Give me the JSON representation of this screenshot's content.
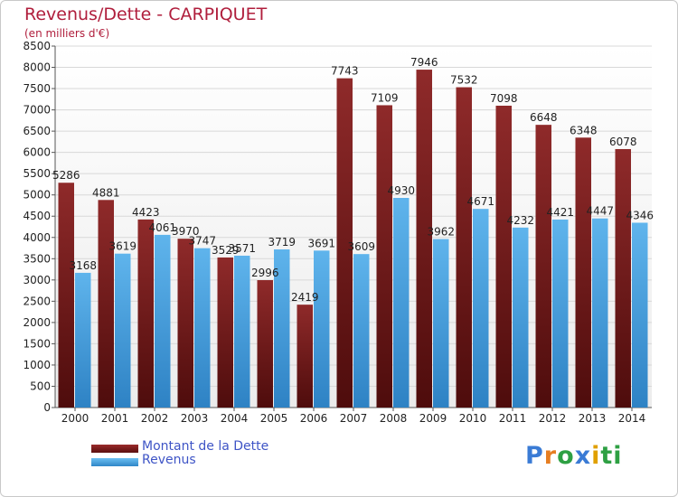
{
  "chart_data": {
    "type": "bar",
    "title": "Revenus/Dette - CARPIQUET",
    "subtitle": "(en milliers d'€)",
    "categories": [
      "2000",
      "2001",
      "2002",
      "2003",
      "2004",
      "2005",
      "2006",
      "2007",
      "2008",
      "2009",
      "2010",
      "2011",
      "2012",
      "2013",
      "2014"
    ],
    "series": [
      {
        "name": "Montant de la Dette",
        "color": "#7f1c1c",
        "values": [
          5286,
          4881,
          4423,
          3970,
          3529,
          2996,
          2419,
          7743,
          7109,
          7946,
          7532,
          7098,
          6648,
          6348,
          6078
        ]
      },
      {
        "name": "Revenus",
        "color": "#4aa3e0",
        "values": [
          3168,
          3619,
          4061,
          3747,
          3571,
          3719,
          3691,
          3609,
          4930,
          3962,
          4671,
          4232,
          4421,
          4447,
          4346
        ]
      }
    ],
    "ylim": [
      0,
      8500
    ],
    "ytick_step": 500,
    "grid": true,
    "legend_position": "bottom-left"
  },
  "brand": {
    "name": "Proxiti",
    "letters": [
      "P",
      "r",
      "o",
      "x",
      "i",
      "ti"
    ]
  }
}
